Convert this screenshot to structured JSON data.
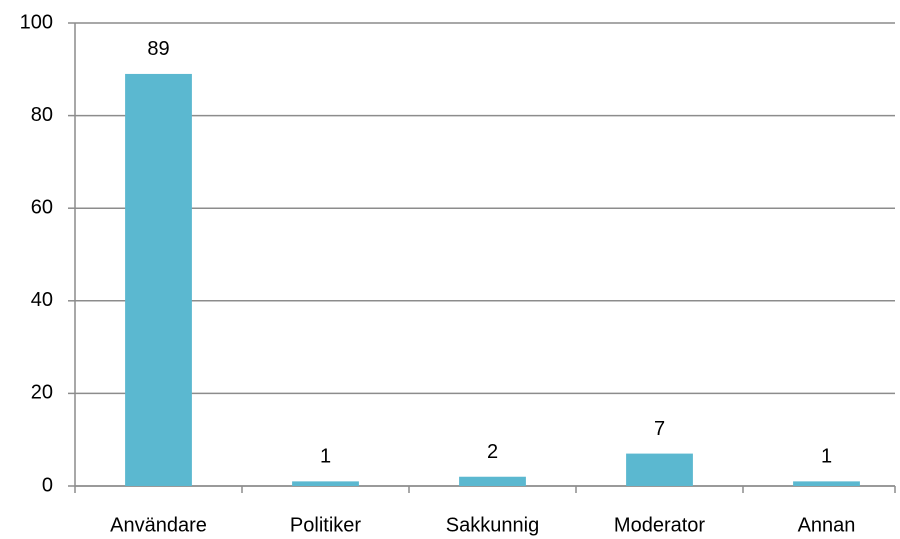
{
  "chart_data": {
    "type": "bar",
    "categories": [
      "Användare",
      "Politiker",
      "Sakkunnig",
      "Moderator",
      "Annan"
    ],
    "values": [
      89,
      1,
      2,
      7,
      1
    ],
    "color": "#5bb8d0",
    "ylim": [
      0,
      100
    ],
    "yticks": [
      0,
      20,
      40,
      60,
      80,
      100
    ],
    "grid": true
  }
}
